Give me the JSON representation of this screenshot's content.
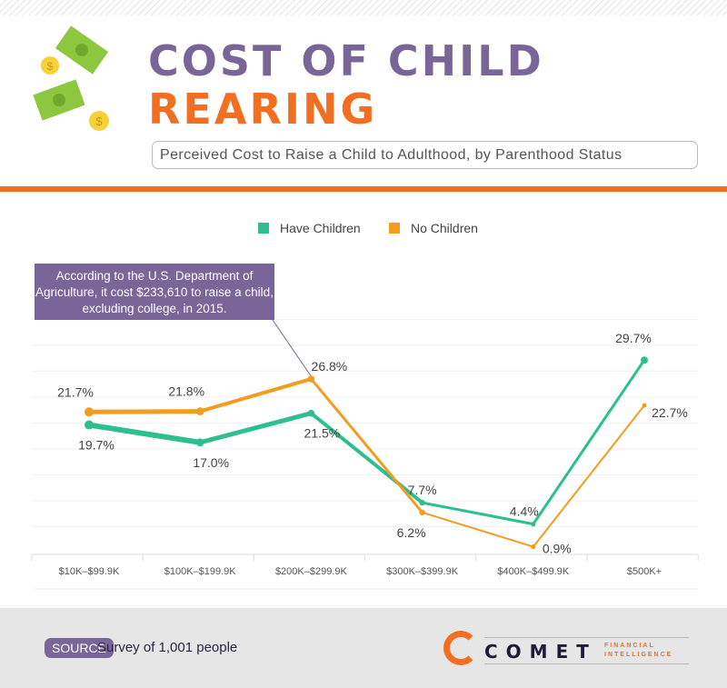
{
  "header": {
    "title_line1": "COST OF CHILD",
    "title_line2": "REARING",
    "subtitle": "Perceived Cost to Raise a Child to Adulthood, by Parenthood Status"
  },
  "callout": "According to the U.S. Department of Agriculture, it cost $233,610 to raise a child, excluding college, in 2015.",
  "chart_data": {
    "type": "line",
    "categories": [
      "$10K–$99.9K",
      "$100K–$199.9K",
      "$200K–$299.9K",
      "$300K–$399.9K",
      "$400K–$499.9K",
      "$500K+"
    ],
    "series": [
      {
        "name": "Have Children",
        "color": "#2dbf8f",
        "values": [
          19.7,
          17.0,
          21.5,
          7.7,
          4.4,
          29.7
        ],
        "labels": [
          "19.7%",
          "17.0%",
          "21.5%",
          "7.7%",
          "4.4%",
          "29.7%"
        ]
      },
      {
        "name": "No Children",
        "color": "#f39c1f",
        "values": [
          21.7,
          21.8,
          26.8,
          6.2,
          0.9,
          22.7
        ],
        "labels": [
          "21.7%",
          "21.8%",
          "26.8%",
          "6.2%",
          "0.9%",
          "22.7%"
        ]
      }
    ],
    "ylim": [
      0,
      36
    ],
    "grid": true,
    "legend": "top-center"
  },
  "footer": {
    "source_label": "SOURCE",
    "source_text": "Survey of 1,001 people",
    "logo_word": "COMET",
    "logo_sub1": "FINANCIAL",
    "logo_sub2": "INTELLIGENCE"
  }
}
